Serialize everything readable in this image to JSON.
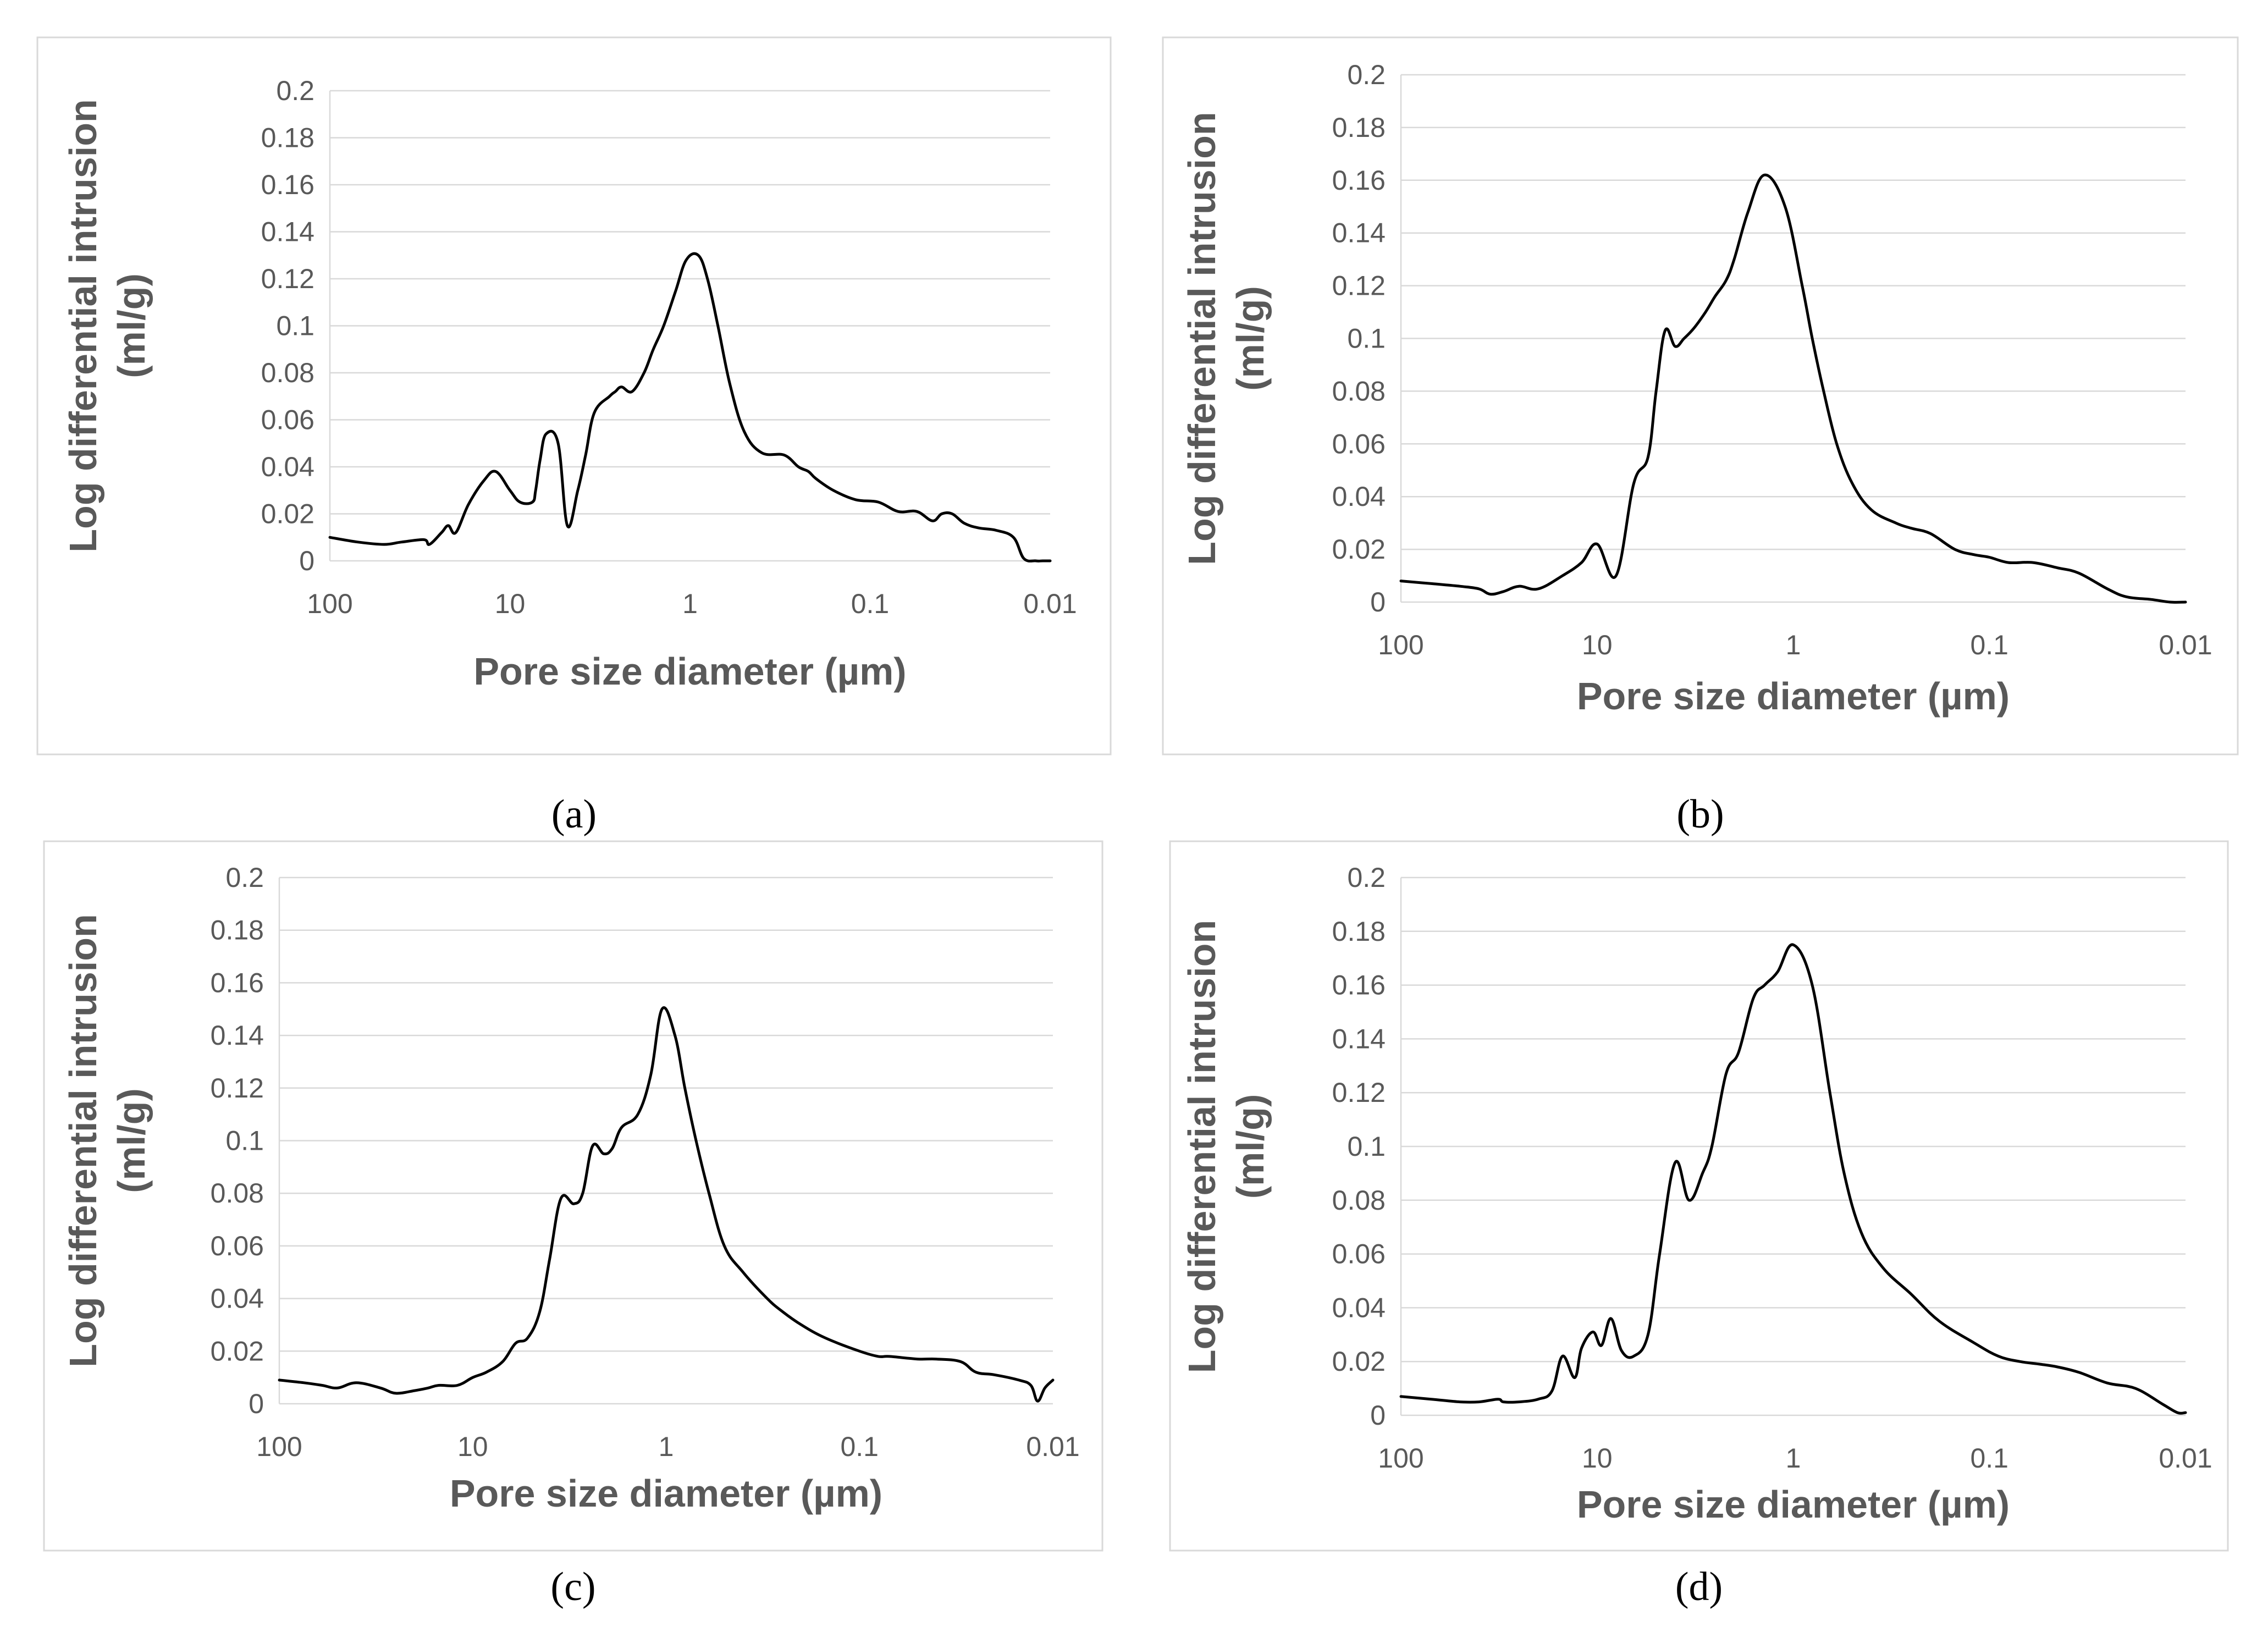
{
  "chart_data": [
    {
      "panel": "a",
      "caption": "(a)",
      "type": "line",
      "xlabel": "Pore size diameter (µm)",
      "ylabel_line1": "Log differential intrusion",
      "ylabel_line2": "(ml/g)",
      "x_scale": "log",
      "x_reversed": true,
      "xlim": [
        100,
        0.01
      ],
      "ylim": [
        0,
        0.2
      ],
      "x_ticks": [
        "100",
        "10",
        "1",
        "0.1",
        "0.01"
      ],
      "y_ticks": [
        "0",
        "0.02",
        "0.04",
        "0.06",
        "0.08",
        "0.1",
        "0.12",
        "0.14",
        "0.16",
        "0.18",
        "0.2"
      ],
      "grid": true,
      "series": [
        {
          "name": "Log differential intrusion",
          "x": [
            100,
            70,
            50,
            40,
            30,
            28,
            24,
            22,
            20,
            17,
            14,
            12,
            10,
            8.8,
            7.5,
            7.2,
            6.8,
            6.3,
            5.4,
            4.8,
            4.2,
            3.8,
            3.4,
            2.8,
            2.6,
            2.4,
            2.1,
            1.8,
            1.6,
            1.4,
            1.2,
            1.05,
            0.9,
            0.8,
            0.7,
            0.6,
            0.5,
            0.4,
            0.3,
            0.25,
            0.22,
            0.2,
            0.16,
            0.12,
            0.09,
            0.07,
            0.055,
            0.045,
            0.04,
            0.035,
            0.03,
            0.025,
            0.02,
            0.016,
            0.014,
            0.012,
            0.011,
            0.01
          ],
          "y": [
            0.01,
            0.008,
            0.007,
            0.008,
            0.009,
            0.007,
            0.012,
            0.015,
            0.012,
            0.024,
            0.034,
            0.038,
            0.03,
            0.025,
            0.025,
            0.03,
            0.043,
            0.054,
            0.05,
            0.015,
            0.03,
            0.045,
            0.063,
            0.07,
            0.072,
            0.074,
            0.072,
            0.08,
            0.09,
            0.1,
            0.115,
            0.128,
            0.13,
            0.12,
            0.1,
            0.075,
            0.055,
            0.046,
            0.045,
            0.04,
            0.038,
            0.035,
            0.03,
            0.026,
            0.025,
            0.021,
            0.021,
            0.017,
            0.02,
            0.02,
            0.016,
            0.014,
            0.013,
            0.01,
            0.001,
            0,
            0,
            0
          ]
        }
      ]
    },
    {
      "panel": "b",
      "caption": "(b)",
      "type": "line",
      "xlabel": "Pore size diameter (µm)",
      "ylabel_line1": "Log differential intrusion",
      "ylabel_line2": "(ml/g)",
      "x_scale": "log",
      "x_reversed": true,
      "xlim": [
        100,
        0.01
      ],
      "ylim": [
        0,
        0.2
      ],
      "x_ticks": [
        "100",
        "10",
        "1",
        "0.1",
        "0.01"
      ],
      "y_ticks": [
        "0",
        "0.02",
        "0.04",
        "0.06",
        "0.08",
        "0.1",
        "0.12",
        "0.14",
        "0.16",
        "0.18",
        "0.2"
      ],
      "grid": true,
      "series": [
        {
          "name": "Log differential intrusion",
          "x": [
            100,
            70,
            50,
            40,
            35,
            30,
            25,
            20,
            15,
            12,
            10,
            8,
            6.5,
            5.5,
            5,
            4.5,
            4,
            3.6,
            3.2,
            2.8,
            2.5,
            2.2,
            2,
            1.7,
            1.4,
            1.1,
            0.9,
            0.8,
            0.7,
            0.6,
            0.5,
            0.4,
            0.3,
            0.25,
            0.2,
            0.15,
            0.12,
            0.1,
            0.08,
            0.06,
            0.045,
            0.035,
            0.025,
            0.02,
            0.015,
            0.012,
            0.01
          ],
          "y": [
            0.008,
            0.007,
            0.006,
            0.005,
            0.003,
            0.004,
            0.006,
            0.005,
            0.01,
            0.015,
            0.022,
            0.01,
            0.045,
            0.055,
            0.08,
            0.103,
            0.097,
            0.1,
            0.104,
            0.11,
            0.116,
            0.122,
            0.13,
            0.148,
            0.162,
            0.15,
            0.12,
            0.1,
            0.08,
            0.06,
            0.045,
            0.035,
            0.03,
            0.028,
            0.026,
            0.02,
            0.018,
            0.017,
            0.015,
            0.015,
            0.013,
            0.011,
            0.005,
            0.002,
            0.001,
            0,
            0
          ]
        }
      ]
    },
    {
      "panel": "c",
      "caption": "(c)",
      "type": "line",
      "xlabel": "Pore size diameter (µm)",
      "ylabel_line1": "Log differential intrusion",
      "ylabel_line2": "(ml/g)",
      "x_scale": "log",
      "x_reversed": true,
      "xlim": [
        100,
        0.01
      ],
      "ylim": [
        0,
        0.2
      ],
      "x_ticks": [
        "100",
        "10",
        "1",
        "0.1",
        "0.01"
      ],
      "y_ticks": [
        "0",
        "0.02",
        "0.04",
        "0.06",
        "0.08",
        "0.1",
        "0.12",
        "0.14",
        "0.16",
        "0.18",
        "0.2"
      ],
      "grid": true,
      "series": [
        {
          "name": "Log differential intrusion",
          "x": [
            100,
            75,
            60,
            50,
            40,
            30,
            25,
            20,
            17,
            15,
            12,
            10,
            8.5,
            7,
            6,
            5.2,
            4.5,
            4,
            3.5,
            3,
            2.7,
            2.4,
            2.1,
            1.9,
            1.7,
            1.4,
            1.2,
            1.05,
            0.9,
            0.8,
            0.7,
            0.6,
            0.5,
            0.4,
            0.3,
            0.25,
            0.2,
            0.15,
            0.1,
            0.08,
            0.07,
            0.05,
            0.04,
            0.03,
            0.025,
            0.02,
            0.015,
            0.013,
            0.012,
            0.011,
            0.01
          ],
          "y": [
            0.009,
            0.008,
            0.007,
            0.006,
            0.008,
            0.006,
            0.004,
            0.005,
            0.006,
            0.007,
            0.007,
            0.01,
            0.012,
            0.016,
            0.023,
            0.025,
            0.035,
            0.055,
            0.078,
            0.076,
            0.08,
            0.098,
            0.095,
            0.097,
            0.105,
            0.11,
            0.125,
            0.15,
            0.14,
            0.12,
            0.1,
            0.08,
            0.06,
            0.05,
            0.04,
            0.035,
            0.03,
            0.025,
            0.02,
            0.018,
            0.018,
            0.017,
            0.017,
            0.016,
            0.012,
            0.011,
            0.009,
            0.007,
            0.001,
            0.006,
            0.009
          ]
        }
      ]
    },
    {
      "panel": "d",
      "caption": "(d)",
      "type": "line",
      "xlabel": "Pore size diameter (µm)",
      "ylabel_line1": "Log differential intrusion",
      "ylabel_line2": "(ml/g)",
      "x_scale": "log",
      "x_reversed": true,
      "xlim": [
        100,
        0.01
      ],
      "ylim": [
        0,
        0.2
      ],
      "x_ticks": [
        "100",
        "10",
        "1",
        "0.1",
        "0.01"
      ],
      "y_ticks": [
        "0",
        "0.02",
        "0.04",
        "0.06",
        "0.08",
        "0.1",
        "0.12",
        "0.14",
        "0.16",
        "0.18",
        "0.2"
      ],
      "grid": true,
      "series": [
        {
          "name": "Log differential intrusion",
          "x": [
            100,
            70,
            50,
            40,
            32,
            30,
            25,
            20,
            17,
            15,
            13,
            12,
            10.5,
            9.5,
            8.5,
            7.5,
            6.5,
            5.5,
            4.8,
            4,
            3.4,
            2.9,
            2.6,
            2.2,
            1.9,
            1.6,
            1.4,
            1.2,
            1,
            0.8,
            0.65,
            0.55,
            0.45,
            0.35,
            0.25,
            0.18,
            0.12,
            0.09,
            0.07,
            0.055,
            0.045,
            0.035,
            0.025,
            0.018,
            0.013,
            0.011,
            0.01
          ],
          "y": [
            0.007,
            0.006,
            0.005,
            0.005,
            0.006,
            0.005,
            0.005,
            0.006,
            0.009,
            0.022,
            0.014,
            0.025,
            0.031,
            0.026,
            0.036,
            0.024,
            0.022,
            0.03,
            0.06,
            0.094,
            0.08,
            0.09,
            0.1,
            0.127,
            0.135,
            0.155,
            0.16,
            0.165,
            0.175,
            0.16,
            0.12,
            0.09,
            0.068,
            0.055,
            0.045,
            0.035,
            0.027,
            0.022,
            0.02,
            0.019,
            0.018,
            0.016,
            0.012,
            0.01,
            0.004,
            0.001,
            0.001
          ]
        }
      ]
    }
  ]
}
